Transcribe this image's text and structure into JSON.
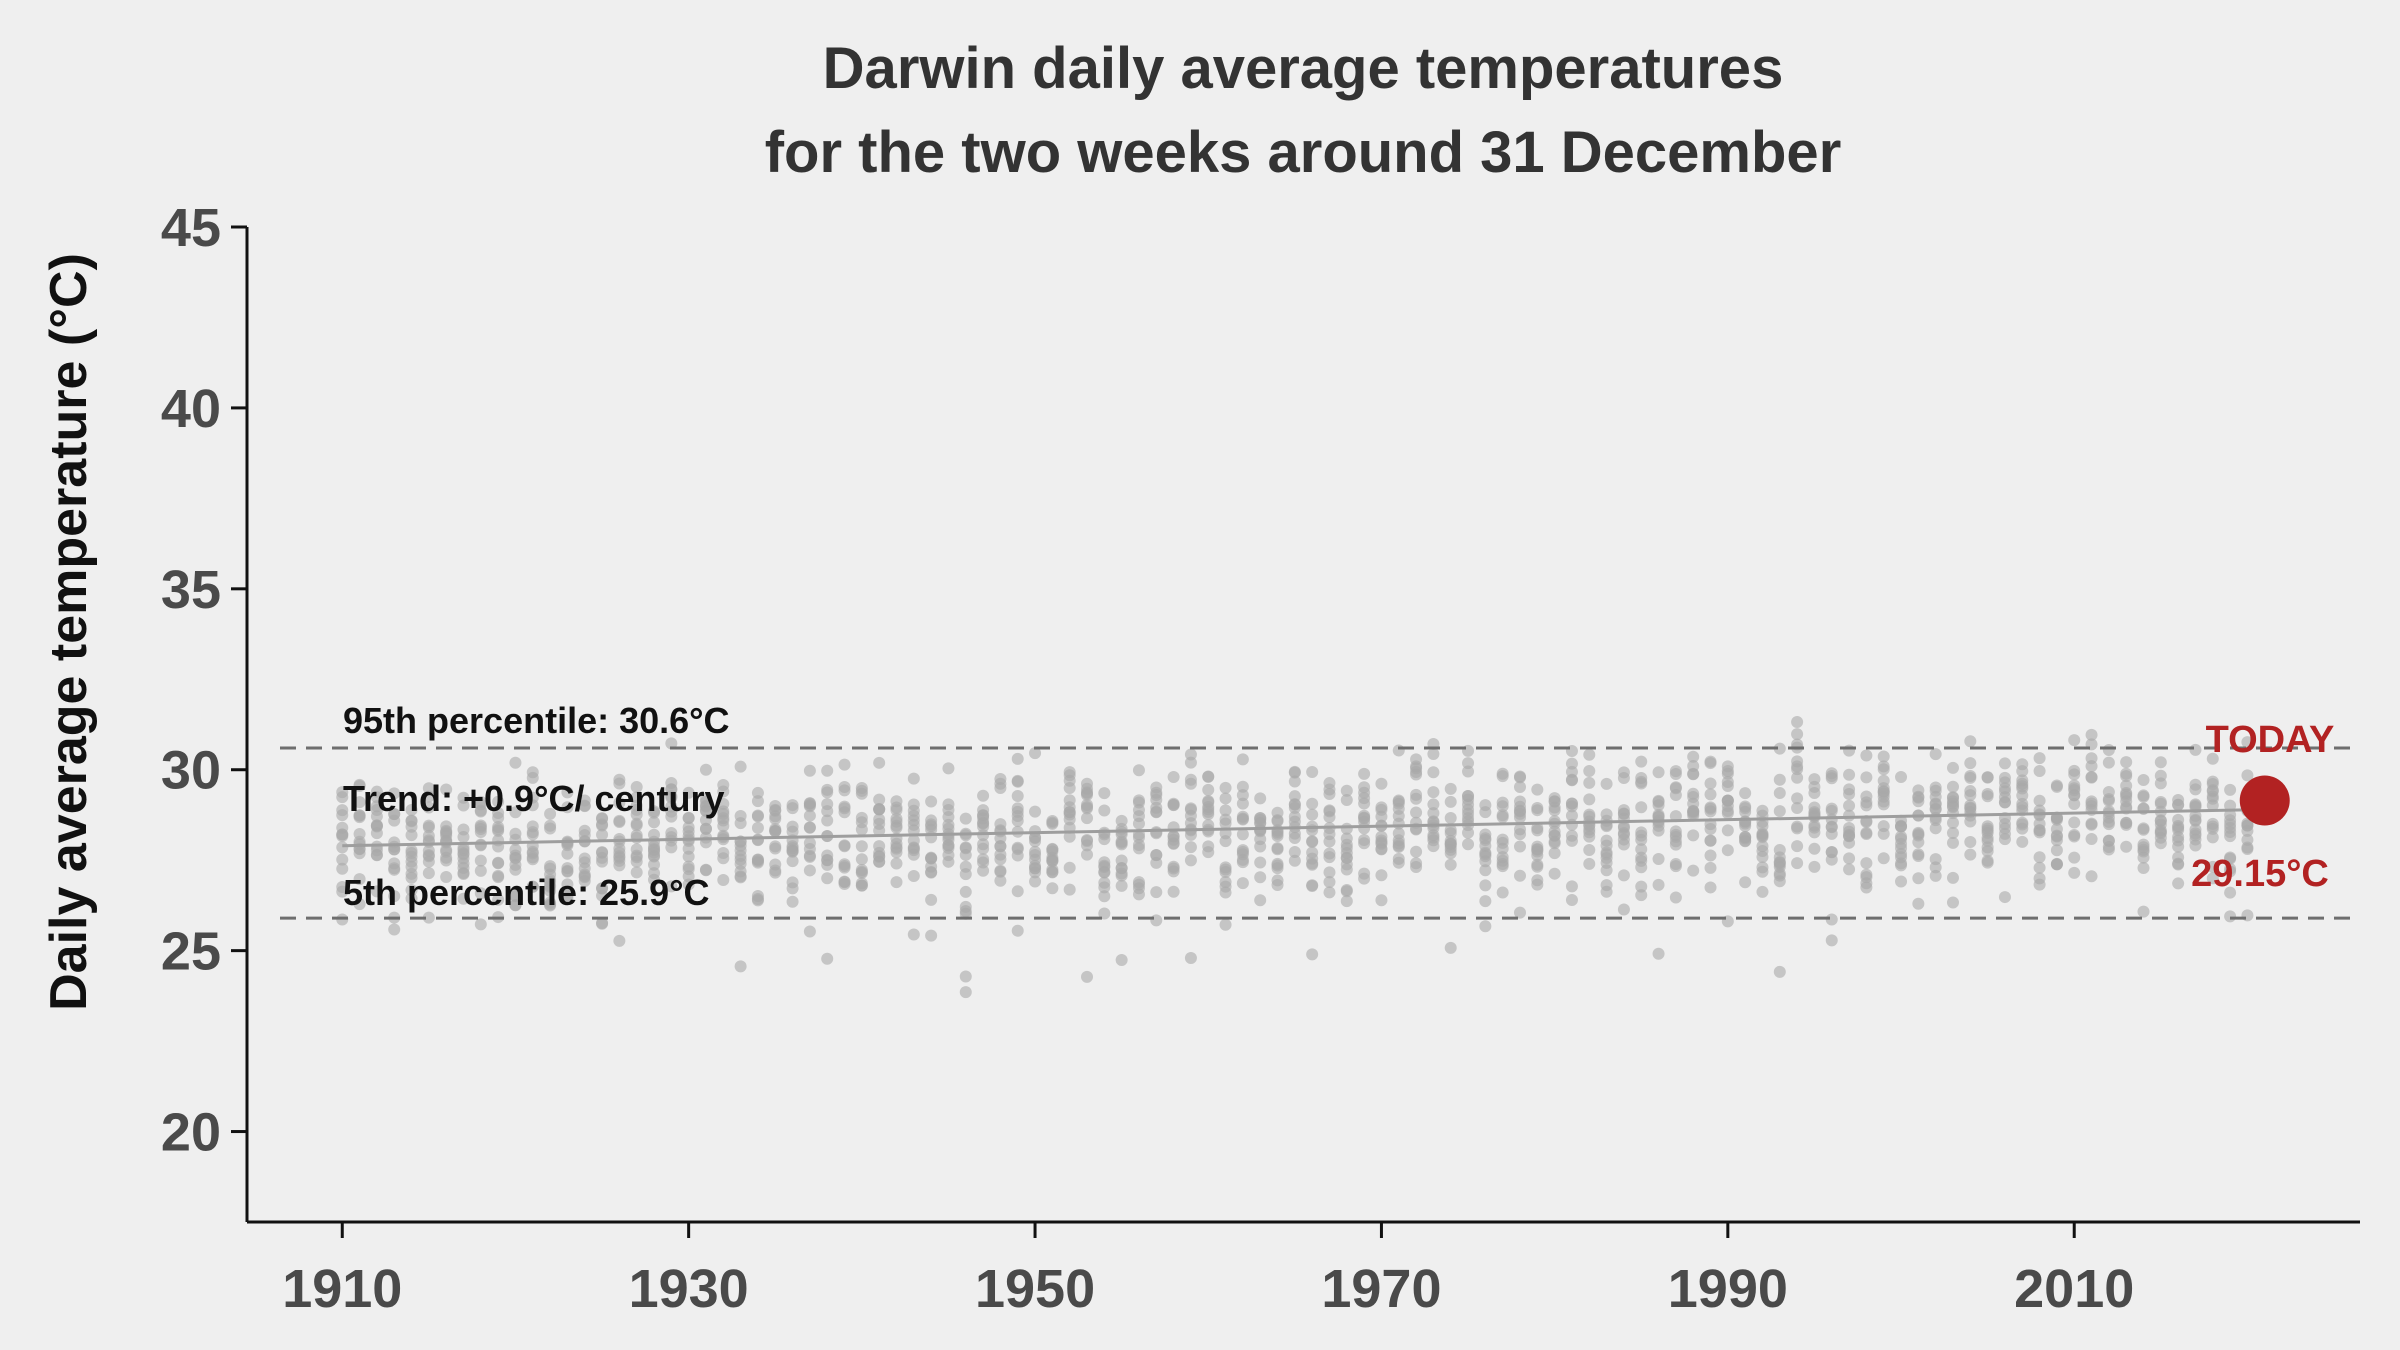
{
  "chart_data": {
    "type": "scatter",
    "title_lines": [
      "Darwin daily average temperatures",
      "for the two weeks around 31 December"
    ],
    "xlabel": "",
    "ylabel": "Daily average temperature (°C)",
    "xlim": [
      1904.5,
      2026.5
    ],
    "ylim": [
      17.5,
      45
    ],
    "xticks": [
      1910,
      1930,
      1950,
      1970,
      1990,
      2010
    ],
    "yticks": [
      20,
      25,
      30,
      35,
      40,
      45
    ],
    "year_range": [
      1910,
      2020
    ],
    "days_per_year": 14,
    "points_note": "Gray scatter points: ~14 daily values per year, 1910–2020, mostly between ~25 and ~31 °C",
    "percentile_95": {
      "value": 30.6,
      "label": "95th percentile:  30.6°C"
    },
    "percentile_5": {
      "value": 25.9,
      "label": "5th percentile:  25.9°C"
    },
    "trend": {
      "label": "Trend: +0.9°C/ century",
      "start": {
        "x": 1910,
        "y": 27.9
      },
      "end": {
        "x": 2021,
        "y": 28.9
      }
    },
    "today": {
      "x": 2021,
      "y": 29.15,
      "label": "TODAY",
      "value_label": "29.15°C"
    },
    "colors": {
      "points": "#a8a8a8",
      "trend": "#9e9e9e",
      "percentile": "#6e6e6e",
      "today": "#b22222",
      "axis": "#111111",
      "background": "#efefef"
    },
    "grid": false
  }
}
